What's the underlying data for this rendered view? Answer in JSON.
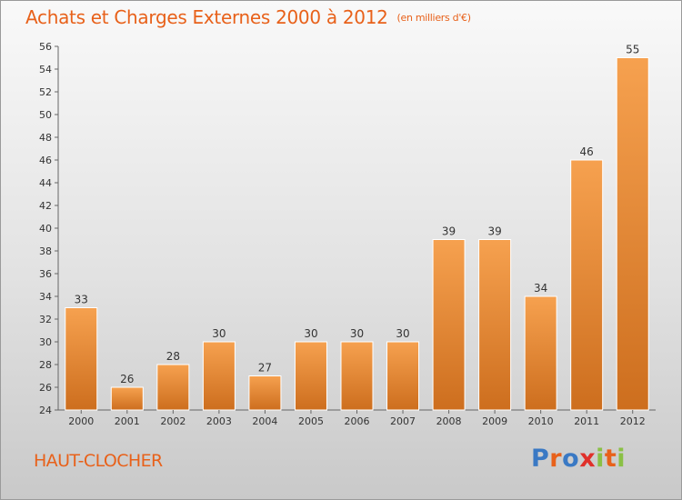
{
  "header": {
    "title": "Achats et Charges Externes 2000 à 2012",
    "subtitle": "(en milliers d'€)"
  },
  "footer": {
    "commune": "HAUT-CLOCHER",
    "logo_letters": [
      {
        "char": "P",
        "color": "#3a79c4"
      },
      {
        "char": "r",
        "color": "#e8611a"
      },
      {
        "char": "o",
        "color": "#3a79c4"
      },
      {
        "char": "x",
        "color": "#e0302a"
      },
      {
        "char": "i",
        "color": "#8ac045"
      },
      {
        "char": "t",
        "color": "#e8611a"
      },
      {
        "char": "i",
        "color": "#8ac045"
      }
    ]
  },
  "colors": {
    "bar_light": "#f6a14f",
    "bar_dark": "#cd6e1e",
    "accent": "#e8611a"
  },
  "chart_data": {
    "type": "bar",
    "categories": [
      "2000",
      "2001",
      "2002",
      "2003",
      "2004",
      "2005",
      "2006",
      "2007",
      "2008",
      "2009",
      "2010",
      "2011",
      "2012"
    ],
    "values": [
      33,
      26,
      28,
      30,
      27,
      30,
      30,
      30,
      39,
      39,
      34,
      46,
      55
    ],
    "title": "Achats et Charges Externes 2000 à 2012",
    "subtitle": "(en milliers d'€)",
    "xlabel": "",
    "ylabel": "",
    "ylim": [
      24,
      56
    ],
    "yticks": [
      24,
      26,
      28,
      30,
      32,
      34,
      36,
      38,
      40,
      42,
      44,
      46,
      48,
      50,
      52,
      54,
      56
    ],
    "grid": false,
    "legend": "none",
    "data_labels": true
  }
}
